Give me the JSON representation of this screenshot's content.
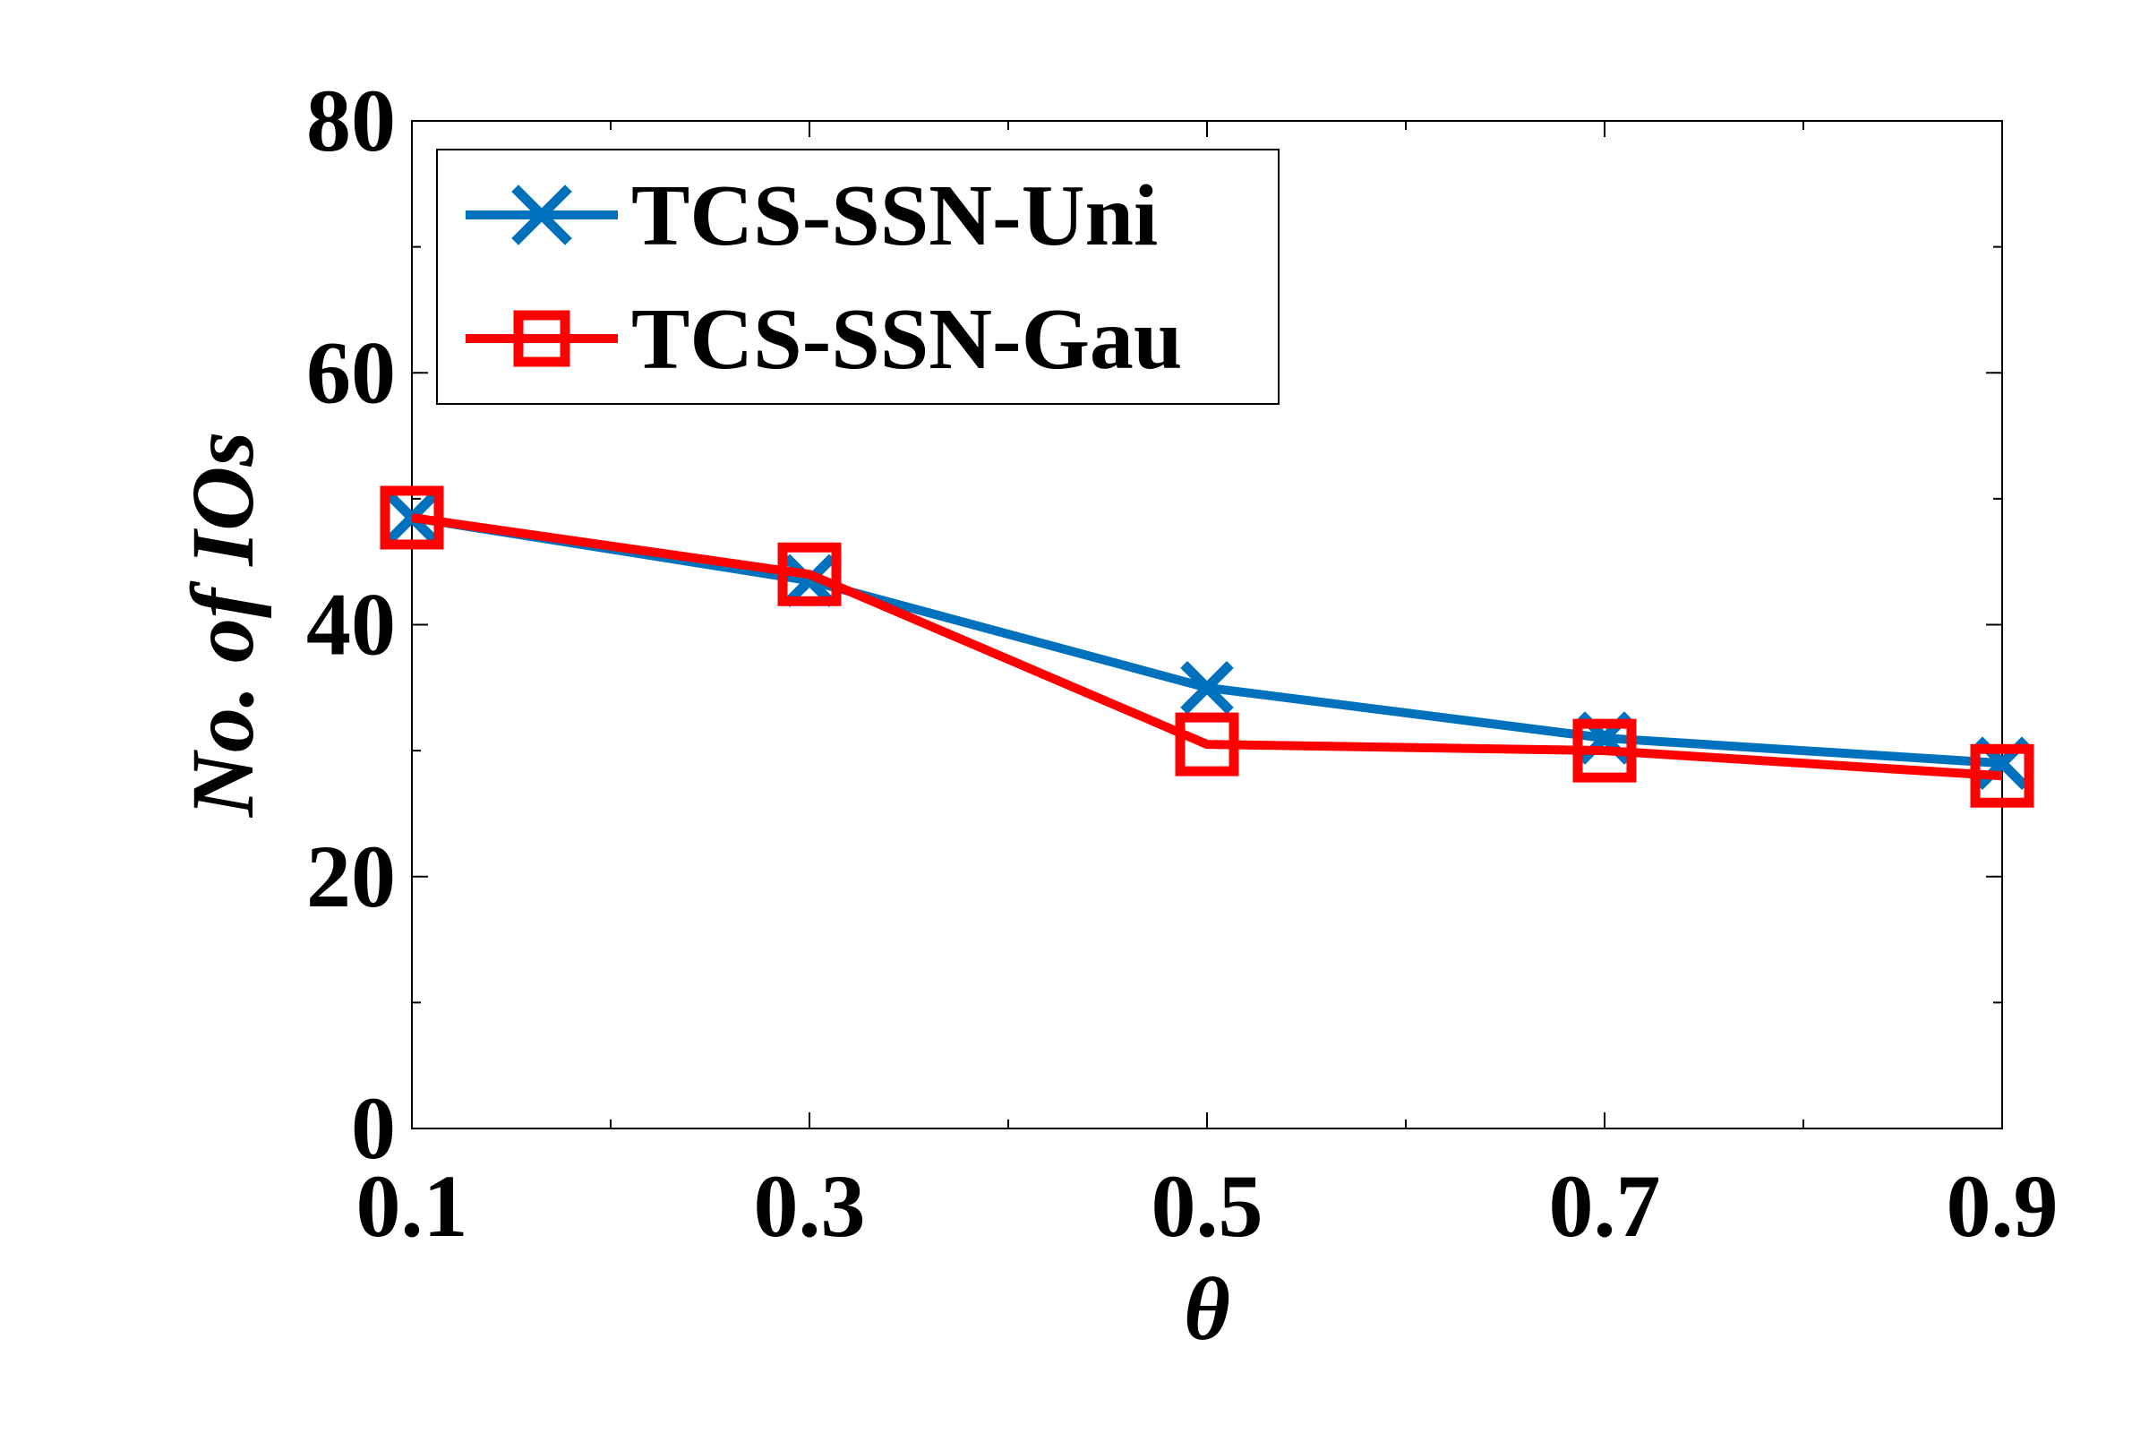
{
  "chart_data": {
    "type": "line",
    "title": "",
    "xlabel": "θ",
    "ylabel": "No. of IOs",
    "x": [
      0.1,
      0.3,
      0.5,
      0.7,
      0.9
    ],
    "x_tick_labels": [
      "0.1",
      "0.3",
      "0.5",
      "0.7",
      "0.9"
    ],
    "xlim": [
      0.1,
      0.9
    ],
    "ylim": [
      0,
      80
    ],
    "y_ticks": [
      0,
      20,
      40,
      60,
      80
    ],
    "y_tick_labels": [
      "0",
      "20",
      "40",
      "60",
      "80"
    ],
    "grid": false,
    "legend_position": "top-left",
    "series": [
      {
        "name": "TCS-SSN-Uni",
        "color": "#0072BD",
        "marker": "x",
        "values": [
          48.5,
          43.5,
          35.0,
          31.0,
          29.0
        ]
      },
      {
        "name": "TCS-SSN-Gau",
        "color": "#FF0000",
        "marker": "square",
        "values": [
          48.5,
          44.0,
          30.5,
          30.0,
          28.0
        ]
      }
    ]
  }
}
